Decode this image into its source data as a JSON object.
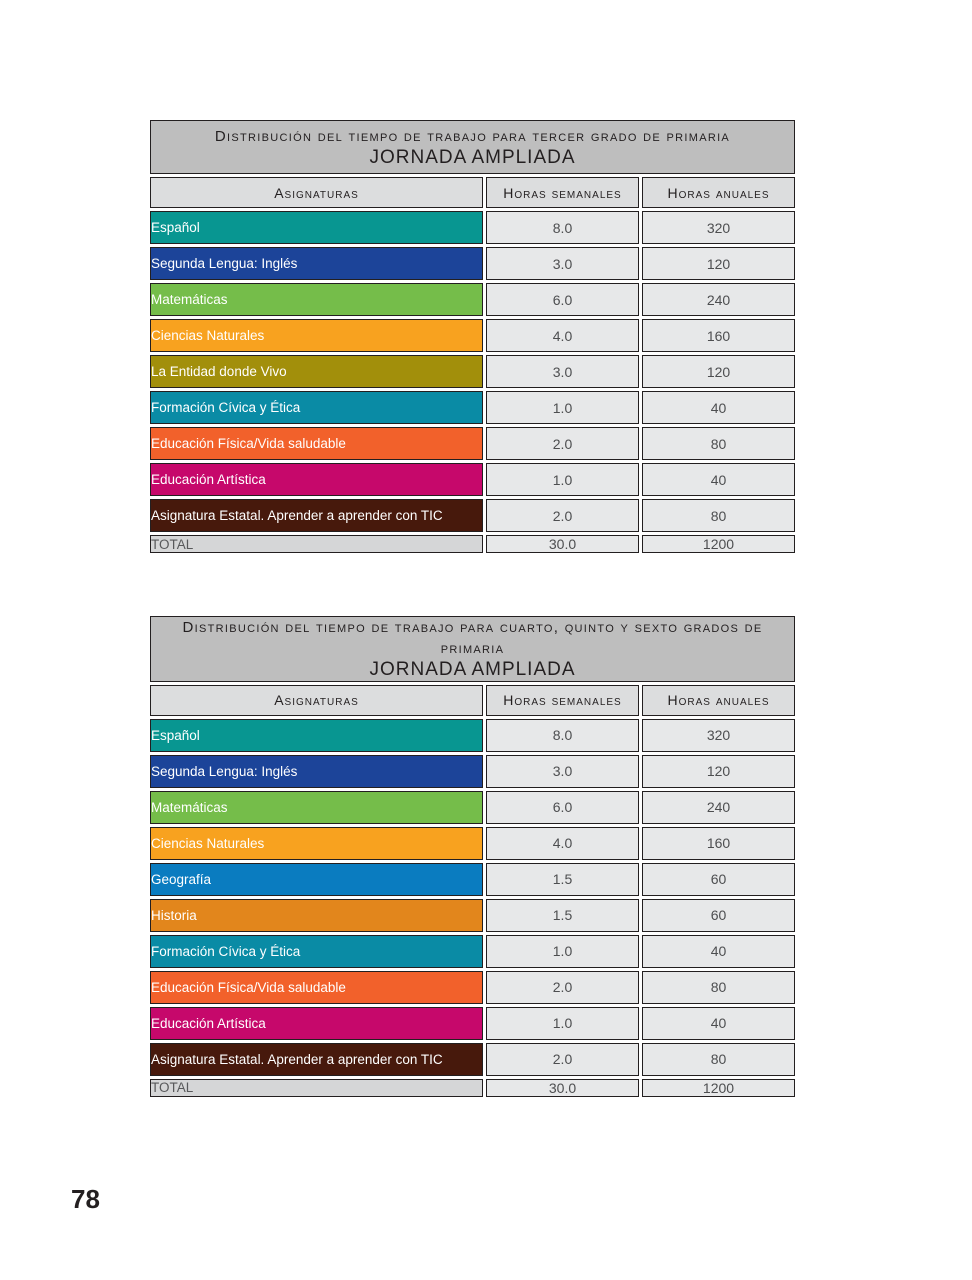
{
  "page": {
    "number": "78"
  },
  "colors": {
    "title_band": "#bebebe",
    "column_header_band": "#dcddde",
    "value_cell_background": "#e7e8e9",
    "total_label_cell_background": "#d5d6d7",
    "cell_border": "#231f20",
    "value_text": "#4d4e50",
    "subject_text": "#ffffff"
  },
  "tables": [
    {
      "title": "Distribución del tiempo de trabajo para tercer grado de primaria",
      "subtitle": "JORNADA AMPLIADA",
      "columns": [
        "Asignaturas",
        "Horas semanales",
        "Horas anuales"
      ],
      "rows": [
        {
          "subject": "Español",
          "weekly_hours": "8.0",
          "annual_hours": "320",
          "color": "#089691"
        },
        {
          "subject": "Segunda Lengua: Inglés",
          "weekly_hours": "3.0",
          "annual_hours": "120",
          "color": "#1c4499"
        },
        {
          "subject": "Matemáticas",
          "weekly_hours": "6.0",
          "annual_hours": "240",
          "color": "#75bd4a"
        },
        {
          "subject": "Ciencias Naturales",
          "weekly_hours": "4.0",
          "annual_hours": "160",
          "color": "#f8a21f"
        },
        {
          "subject": "La Entidad donde Vivo",
          "weekly_hours": "3.0",
          "annual_hours": "120",
          "color": "#a28f0b"
        },
        {
          "subject": "Formación Cívica y Ética",
          "weekly_hours": "1.0",
          "annual_hours": "40",
          "color": "#0a8ba5"
        },
        {
          "subject": "Educación Física/Vida saludable",
          "weekly_hours": "2.0",
          "annual_hours": "80",
          "color": "#f2612b"
        },
        {
          "subject": "Educación Artística",
          "weekly_hours": "1.0",
          "annual_hours": "40",
          "color": "#c6086b"
        },
        {
          "subject": "Asignatura Estatal. Aprender a aprender con TIC",
          "weekly_hours": "2.0",
          "annual_hours": "80",
          "color": "#47190c"
        }
      ],
      "total": {
        "label": "TOTAL",
        "weekly_hours": "30.0",
        "annual_hours": "1200"
      }
    },
    {
      "title": "Distribución del tiempo de trabajo para cuarto, quinto y sexto grados de primaria",
      "subtitle": "JORNADA AMPLIADA",
      "columns": [
        "Asignaturas",
        "Horas semanales",
        "Horas anuales"
      ],
      "rows": [
        {
          "subject": "Español",
          "weekly_hours": "8.0",
          "annual_hours": "320",
          "color": "#089691"
        },
        {
          "subject": "Segunda Lengua: Inglés",
          "weekly_hours": "3.0",
          "annual_hours": "120",
          "color": "#1c4499"
        },
        {
          "subject": "Matemáticas",
          "weekly_hours": "6.0",
          "annual_hours": "240",
          "color": "#75bd4a"
        },
        {
          "subject": "Ciencias Naturales",
          "weekly_hours": "4.0",
          "annual_hours": "160",
          "color": "#f8a21f"
        },
        {
          "subject": "Geografía",
          "weekly_hours": "1.5",
          "annual_hours": "60",
          "color": "#0a7cc0"
        },
        {
          "subject": "Historia",
          "weekly_hours": "1.5",
          "annual_hours": "60",
          "color": "#e2861c"
        },
        {
          "subject": "Formación Cívica y Ética",
          "weekly_hours": "1.0",
          "annual_hours": "40",
          "color": "#0a8ba5"
        },
        {
          "subject": "Educación Física/Vida saludable",
          "weekly_hours": "2.0",
          "annual_hours": "80",
          "color": "#f2612b"
        },
        {
          "subject": "Educación Artística",
          "weekly_hours": "1.0",
          "annual_hours": "40",
          "color": "#c6086b"
        },
        {
          "subject": "Asignatura Estatal. Aprender a aprender con TIC",
          "weekly_hours": "2.0",
          "annual_hours": "80",
          "color": "#47190c"
        }
      ],
      "total": {
        "label": "TOTAL",
        "weekly_hours": "30.0",
        "annual_hours": "1200"
      }
    }
  ]
}
